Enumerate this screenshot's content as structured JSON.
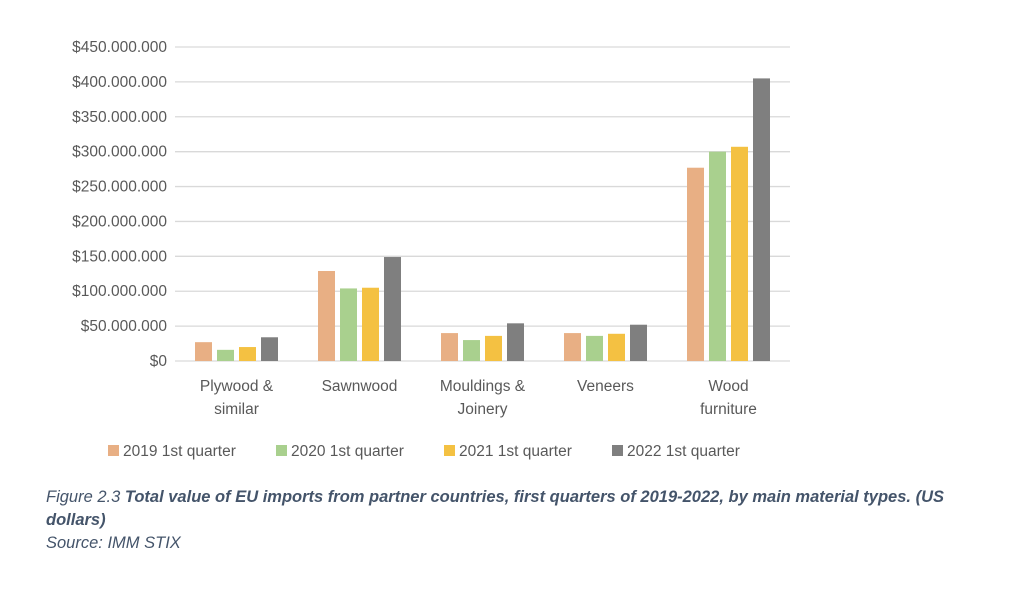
{
  "chart_data": {
    "type": "bar",
    "categories": [
      [
        "Plywood &",
        "similar"
      ],
      [
        "Sawnwood"
      ],
      [
        "Mouldings &",
        "Joinery"
      ],
      [
        "Veneers"
      ],
      [
        "Wood",
        "furniture"
      ]
    ],
    "series": [
      {
        "name": "2019 1st quarter",
        "color": "#E8AF84",
        "values": [
          27000000,
          129000000,
          40000000,
          40000000,
          277000000
        ]
      },
      {
        "name": "2020 1st quarter",
        "color": "#A9D08E",
        "values": [
          16000000,
          104000000,
          30000000,
          36000000,
          300000000
        ]
      },
      {
        "name": "2021 1st quarter",
        "color": "#F4C142",
        "values": [
          20000000,
          105000000,
          36000000,
          39000000,
          307000000
        ]
      },
      {
        "name": "2022 1st quarter",
        "color": "#7F7F7F",
        "values": [
          34000000,
          149000000,
          54000000,
          52000000,
          405000000
        ]
      }
    ],
    "yticks": [
      "$0",
      "$50.000.000",
      "$100.000.000",
      "$150.000.000",
      "$200.000.000",
      "$250.000.000",
      "$300.000.000",
      "$350.000.000",
      "$400.000.000",
      "$450.000.000"
    ],
    "ylim": [
      0,
      450000000
    ],
    "grid": true,
    "legend": "bottom"
  },
  "caption": {
    "label": "Figure 2.3 ",
    "title": "Total value of EU imports from partner countries, first quarters of 2019-2022, by main material types. (US dollars)",
    "source": "Source: IMM STIX"
  }
}
